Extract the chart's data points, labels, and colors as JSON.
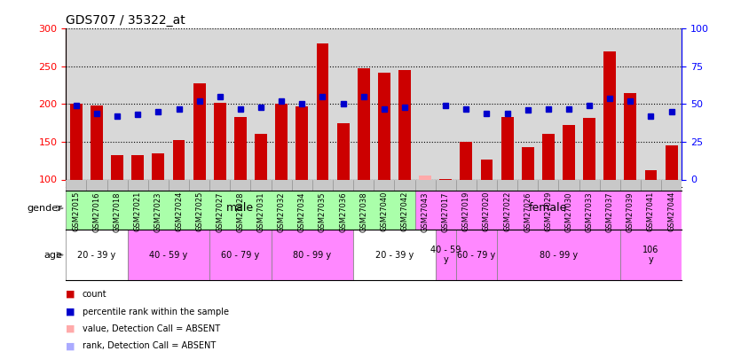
{
  "title": "GDS707 / 35322_at",
  "samples": [
    "GSM27015",
    "GSM27016",
    "GSM27018",
    "GSM27021",
    "GSM27023",
    "GSM27024",
    "GSM27025",
    "GSM27027",
    "GSM27028",
    "GSM27031",
    "GSM27032",
    "GSM27034",
    "GSM27035",
    "GSM27036",
    "GSM27038",
    "GSM27040",
    "GSM27042",
    "GSM27043",
    "GSM27017",
    "GSM27019",
    "GSM27020",
    "GSM27022",
    "GSM27026",
    "GSM27029",
    "GSM27030",
    "GSM27033",
    "GSM27037",
    "GSM27039",
    "GSM27041",
    "GSM27044"
  ],
  "bar_values": [
    200,
    198,
    132,
    132,
    135,
    152,
    228,
    202,
    183,
    160,
    200,
    197,
    280,
    175,
    248,
    242,
    245,
    105,
    101,
    150,
    127,
    183,
    143,
    160,
    172,
    182,
    270,
    215,
    112,
    145
  ],
  "bar_absent": [
    false,
    false,
    false,
    false,
    false,
    false,
    false,
    false,
    false,
    false,
    false,
    false,
    false,
    false,
    false,
    false,
    false,
    true,
    false,
    false,
    false,
    false,
    false,
    false,
    false,
    false,
    false,
    false,
    false,
    false
  ],
  "dot_values": [
    49,
    44,
    42,
    43,
    45,
    47,
    52,
    55,
    47,
    48,
    52,
    50,
    55,
    50,
    55,
    47,
    48,
    null,
    49,
    47,
    44,
    44,
    46,
    47,
    47,
    49,
    54,
    52,
    42,
    45
  ],
  "dot_absent": [
    false,
    false,
    false,
    false,
    false,
    false,
    false,
    false,
    false,
    false,
    false,
    false,
    false,
    false,
    false,
    false,
    false,
    true,
    false,
    false,
    false,
    false,
    false,
    false,
    false,
    false,
    false,
    false,
    false,
    false
  ],
  "ylim_left": [
    100,
    300
  ],
  "ylim_right": [
    0,
    100
  ],
  "yticks_left": [
    100,
    150,
    200,
    250,
    300
  ],
  "yticks_right": [
    0,
    25,
    50,
    75,
    100
  ],
  "bar_color": "#cc0000",
  "bar_absent_color": "#ffaaaa",
  "dot_color": "#0000cc",
  "dot_absent_color": "#aaaaff",
  "plot_bg_color": "#d8d8d8",
  "tick_label_bg": "#c8c8c8",
  "gender_groups": [
    {
      "label": "male",
      "start": 0,
      "end": 17,
      "color": "#aaffaa"
    },
    {
      "label": "female",
      "start": 17,
      "end": 30,
      "color": "#ff88ff"
    }
  ],
  "age_groups": [
    {
      "label": "20 - 39 y",
      "start": 0,
      "end": 3,
      "color": "#ffffff"
    },
    {
      "label": "40 - 59 y",
      "start": 3,
      "end": 7,
      "color": "#ff88ff"
    },
    {
      "label": "60 - 79 y",
      "start": 7,
      "end": 10,
      "color": "#ff88ff"
    },
    {
      "label": "80 - 99 y",
      "start": 10,
      "end": 14,
      "color": "#ff88ff"
    },
    {
      "label": "20 - 39 y",
      "start": 14,
      "end": 18,
      "color": "#ffffff"
    },
    {
      "label": "40 - 59\ny",
      "start": 18,
      "end": 19,
      "color": "#ff88ff"
    },
    {
      "label": "60 - 79 y",
      "start": 19,
      "end": 21,
      "color": "#ff88ff"
    },
    {
      "label": "80 - 99 y",
      "start": 21,
      "end": 27,
      "color": "#ff88ff"
    },
    {
      "label": "106\ny",
      "start": 27,
      "end": 30,
      "color": "#ff88ff"
    }
  ]
}
